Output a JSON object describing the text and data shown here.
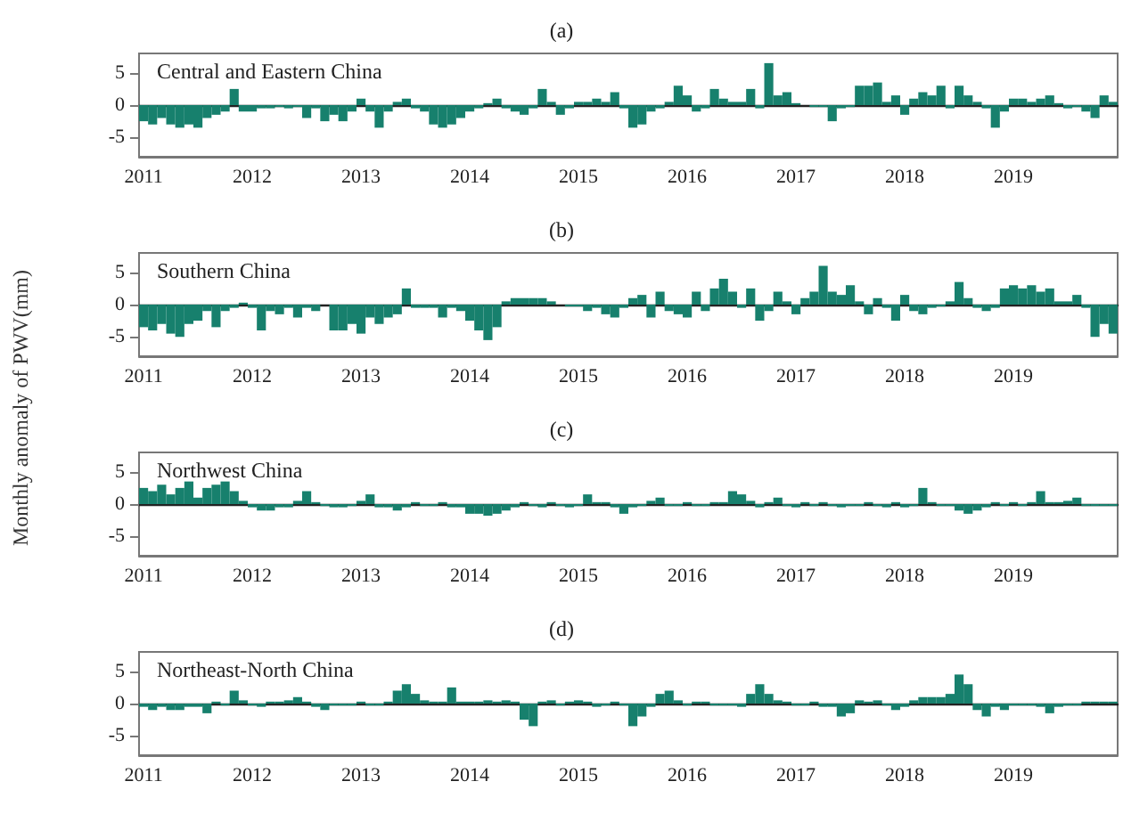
{
  "chart_data": [
    {
      "type": "bar",
      "title": "(a)",
      "annotations": [
        "Central and Eastern China"
      ],
      "categories": [
        "2011",
        null,
        null,
        null,
        null,
        null,
        null,
        null,
        null,
        null,
        null,
        null,
        "2012",
        null,
        null,
        null,
        null,
        null,
        null,
        null,
        null,
        null,
        null,
        null,
        "2013",
        null,
        null,
        null,
        null,
        null,
        null,
        null,
        null,
        null,
        null,
        null,
        "2014",
        null,
        null,
        null,
        null,
        null,
        null,
        null,
        null,
        null,
        null,
        null,
        "2015",
        null,
        null,
        null,
        null,
        null,
        null,
        null,
        null,
        null,
        null,
        null,
        "2016",
        null,
        null,
        null,
        null,
        null,
        null,
        null,
        null,
        null,
        null,
        null,
        "2017",
        null,
        null,
        null,
        null,
        null,
        null,
        null,
        null,
        null,
        null,
        null,
        "2018",
        null,
        null,
        null,
        null,
        null,
        null,
        null,
        null,
        null,
        null,
        null,
        "2019",
        null,
        null,
        null,
        null,
        null,
        null,
        null,
        null,
        null,
        null,
        null
      ],
      "values": [
        -2.5,
        -3,
        -2,
        -3,
        -3.5,
        -3,
        -3.5,
        -2,
        -1.5,
        -1,
        2.5,
        -1,
        -1,
        -0.5,
        -0.5,
        -0.3,
        -0.5,
        -0.3,
        -2,
        -0.5,
        -2.5,
        -1.5,
        -2.5,
        -1,
        1,
        -1,
        -3.5,
        -1,
        0.5,
        1,
        -0.5,
        -1,
        -3,
        -3.5,
        -3,
        -2,
        -1,
        -0.5,
        0.3,
        1,
        -0.5,
        -1,
        -1.5,
        -0.5,
        2.5,
        0.5,
        -1.5,
        -0.5,
        0.5,
        0.5,
        1,
        0.5,
        2,
        -0.5,
        -3.5,
        -3,
        -1,
        -0.5,
        0.5,
        3,
        1.5,
        -1,
        -0.5,
        2.5,
        1,
        0.5,
        0.5,
        2.5,
        -0.5,
        6.5,
        1.5,
        2,
        0.3,
        0,
        -0.3,
        -0.3,
        -2.5,
        -0.5,
        -0.3,
        3,
        3,
        3.5,
        0.5,
        1.5,
        -1.5,
        1,
        2,
        1.5,
        3,
        -0.5,
        3,
        1.5,
        0.5,
        -0.5,
        -3.5,
        -1,
        1,
        1,
        0.5,
        1,
        1.5,
        0.3,
        -0.5,
        -0.3,
        -1,
        -2,
        1.5,
        0.5
      ],
      "color": "#17806d",
      "ylim": [
        -8,
        8
      ],
      "yticks": [
        -5,
        0,
        5
      ]
    },
    {
      "type": "bar",
      "title": "(b)",
      "ylabel": "Monthly anomaly of PWV(mm)",
      "annotations": [
        "Southern China"
      ],
      "categories": [
        "2011",
        null,
        null,
        null,
        null,
        null,
        null,
        null,
        null,
        null,
        null,
        null,
        "2012",
        null,
        null,
        null,
        null,
        null,
        null,
        null,
        null,
        null,
        null,
        null,
        "2013",
        null,
        null,
        null,
        null,
        null,
        null,
        null,
        null,
        null,
        null,
        null,
        "2014",
        null,
        null,
        null,
        null,
        null,
        null,
        null,
        null,
        null,
        null,
        null,
        "2015",
        null,
        null,
        null,
        null,
        null,
        null,
        null,
        null,
        null,
        null,
        null,
        "2016",
        null,
        null,
        null,
        null,
        null,
        null,
        null,
        null,
        null,
        null,
        null,
        "2017",
        null,
        null,
        null,
        null,
        null,
        null,
        null,
        null,
        null,
        null,
        null,
        "2018",
        null,
        null,
        null,
        null,
        null,
        null,
        null,
        null,
        null,
        null,
        null,
        "2019",
        null,
        null,
        null,
        null,
        null,
        null,
        null,
        null,
        null,
        null,
        null
      ],
      "values": [
        -3.5,
        -4,
        -3,
        -4.5,
        -5,
        -3,
        -2.5,
        -1,
        -3.5,
        -1,
        -0.5,
        0.3,
        -0.5,
        -4,
        -1,
        -1.5,
        -0.5,
        -2,
        -0.5,
        -1,
        0,
        -4,
        -4,
        -3,
        -4.5,
        -2,
        -3,
        -2,
        -1.5,
        2.5,
        -0.5,
        -0.5,
        -0.5,
        -2,
        -0.5,
        -1,
        -2.5,
        -4,
        -5.5,
        -3.5,
        0.5,
        1,
        1,
        1,
        1,
        0.5,
        0,
        -0.3,
        -0.3,
        -1,
        -0.5,
        -1.5,
        -2,
        -0.5,
        1,
        1.5,
        -2,
        2,
        -1,
        -1.5,
        -2,
        2,
        -1,
        2.5,
        4,
        2,
        -0.5,
        2.5,
        -2.5,
        -1,
        2,
        0.5,
        -1.5,
        1,
        2,
        6,
        2,
        1.5,
        3,
        0.5,
        -1.5,
        1,
        -0.5,
        -2.5,
        1.5,
        -1,
        -1.5,
        -0.5,
        -0.3,
        0.5,
        3.5,
        1,
        -0.5,
        -1,
        -0.5,
        2.5,
        3,
        2.5,
        3,
        2,
        2.5,
        0.5,
        0.5,
        1.5,
        -0.5,
        -5,
        -3,
        -4.5
      ],
      "color": "#17806d",
      "ylim": [
        -8,
        8
      ],
      "yticks": [
        -5,
        0,
        5
      ]
    },
    {
      "type": "bar",
      "title": "(c)",
      "annotations": [
        "Northwest China"
      ],
      "categories": [
        "2011",
        null,
        null,
        null,
        null,
        null,
        null,
        null,
        null,
        null,
        null,
        null,
        "2012",
        null,
        null,
        null,
        null,
        null,
        null,
        null,
        null,
        null,
        null,
        null,
        "2013",
        null,
        null,
        null,
        null,
        null,
        null,
        null,
        null,
        null,
        null,
        null,
        "2014",
        null,
        null,
        null,
        null,
        null,
        null,
        null,
        null,
        null,
        null,
        null,
        "2015",
        null,
        null,
        null,
        null,
        null,
        null,
        null,
        null,
        null,
        null,
        null,
        "2016",
        null,
        null,
        null,
        null,
        null,
        null,
        null,
        null,
        null,
        null,
        null,
        "2017",
        null,
        null,
        null,
        null,
        null,
        null,
        null,
        null,
        null,
        null,
        null,
        "2018",
        null,
        null,
        null,
        null,
        null,
        null,
        null,
        null,
        null,
        null,
        null,
        "2019",
        null,
        null,
        null,
        null,
        null,
        null,
        null,
        null,
        null,
        null,
        null
      ],
      "values": [
        2.5,
        2,
        3,
        1.5,
        2.5,
        3.5,
        1,
        2.5,
        3,
        3.5,
        2,
        0.5,
        -0.5,
        -1,
        -1,
        -0.5,
        -0.5,
        0.5,
        2,
        0.3,
        -0.3,
        -0.5,
        -0.5,
        -0.3,
        0.5,
        1.5,
        -0.5,
        -0.5,
        -1,
        -0.5,
        0.3,
        -0.3,
        -0.3,
        0.3,
        -0.5,
        -0.5,
        -1.5,
        -1.5,
        -1.8,
        -1.5,
        -1,
        -0.5,
        0.3,
        -0.3,
        -0.5,
        0.3,
        -0.3,
        -0.5,
        -0.3,
        1.5,
        0.3,
        0.3,
        -0.5,
        -1.5,
        -0.5,
        -0.3,
        0.5,
        1,
        -0.3,
        -0.3,
        0.3,
        -0.3,
        -0.3,
        0.3,
        0.3,
        2,
        1.5,
        0.5,
        -0.5,
        0.3,
        1,
        -0.3,
        -0.5,
        0.3,
        -0.3,
        0.3,
        -0.3,
        -0.5,
        -0.3,
        -0.3,
        0.3,
        -0.3,
        -0.5,
        0.3,
        -0.5,
        -0.3,
        2.5,
        0.3,
        -0.3,
        -0.3,
        -1,
        -1.5,
        -1,
        -0.5,
        0.3,
        -0.3,
        0.3,
        -0.3,
        0.3,
        2,
        0.3,
        0.3,
        0.5,
        1,
        -0.3,
        -0.3,
        -0.3,
        -0.3
      ],
      "color": "#17806d",
      "ylim": [
        -8,
        8
      ],
      "yticks": [
        -5,
        0,
        5
      ]
    },
    {
      "type": "bar",
      "title": "(d)",
      "annotations": [
        "Northeast-North China"
      ],
      "categories": [
        "2011",
        null,
        null,
        null,
        null,
        null,
        null,
        null,
        null,
        null,
        null,
        null,
        "2012",
        null,
        null,
        null,
        null,
        null,
        null,
        null,
        null,
        null,
        null,
        null,
        "2013",
        null,
        null,
        null,
        null,
        null,
        null,
        null,
        null,
        null,
        null,
        null,
        "2014",
        null,
        null,
        null,
        null,
        null,
        null,
        null,
        null,
        null,
        null,
        null,
        "2015",
        null,
        null,
        null,
        null,
        null,
        null,
        null,
        null,
        null,
        null,
        null,
        "2016",
        null,
        null,
        null,
        null,
        null,
        null,
        null,
        null,
        null,
        null,
        null,
        "2017",
        null,
        null,
        null,
        null,
        null,
        null,
        null,
        null,
        null,
        null,
        null,
        "2018",
        null,
        null,
        null,
        null,
        null,
        null,
        null,
        null,
        null,
        null,
        null,
        "2019",
        null,
        null,
        null,
        null,
        null,
        null,
        null,
        null,
        null,
        null,
        null
      ],
      "values": [
        -0.5,
        -1,
        -0.5,
        -1,
        -1,
        -0.5,
        -0.5,
        -1.5,
        0.3,
        -0.3,
        2,
        0.5,
        -0.3,
        -0.5,
        0.3,
        0.3,
        0.5,
        1,
        0.3,
        -0.5,
        -1,
        -0.3,
        -0.3,
        -0.3,
        0.3,
        -0.3,
        -0.3,
        0.3,
        2,
        3,
        1.5,
        0.5,
        0.3,
        0.3,
        2.5,
        0.3,
        0.3,
        0.3,
        0.5,
        0.3,
        0.5,
        0.3,
        -2.5,
        -3.5,
        0.3,
        0.5,
        -0.3,
        0.3,
        0.5,
        0.3,
        -0.5,
        -0.3,
        0.3,
        -0.3,
        -3.5,
        -2,
        -0.5,
        1.5,
        2,
        0.5,
        -0.3,
        0.3,
        0.3,
        -0.3,
        -0.3,
        -0.3,
        -0.5,
        1.5,
        3,
        1.5,
        0.5,
        0.3,
        -0.3,
        -0.3,
        0.3,
        -0.5,
        -0.5,
        -2,
        -1.5,
        0.5,
        0.3,
        0.5,
        -0.3,
        -1,
        -0.5,
        0.5,
        1,
        1,
        1,
        1.5,
        4.5,
        3,
        -1,
        -2,
        -0.5,
        -1,
        -0.3,
        -0.3,
        -0.3,
        -0.5,
        -1.5,
        -0.5,
        -0.3,
        -0.3,
        0.3,
        0.3,
        0.3,
        0.3
      ],
      "color": "#17806d",
      "ylim": [
        -8,
        8
      ],
      "yticks": [
        -5,
        0,
        5
      ]
    }
  ]
}
